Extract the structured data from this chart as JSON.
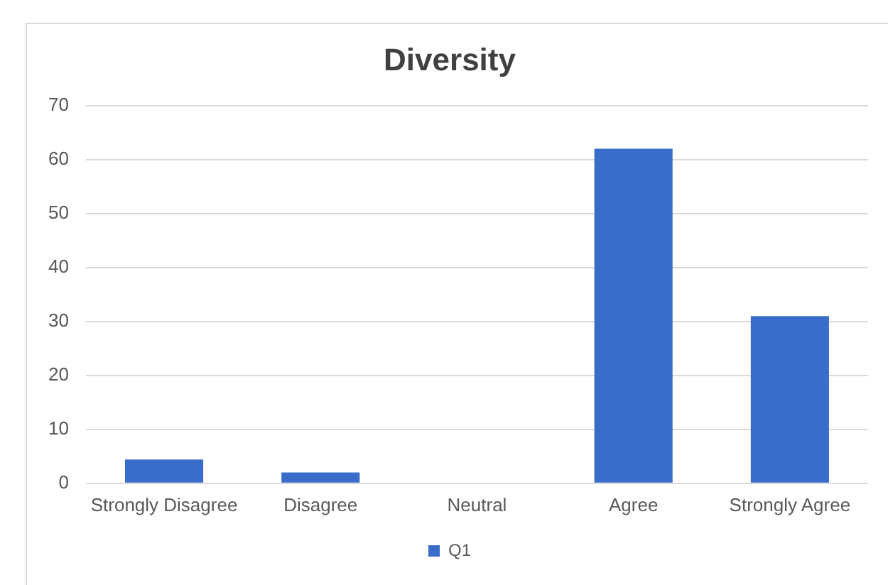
{
  "chart_data": {
    "type": "bar",
    "title": "Diversity",
    "categories": [
      "Strongly Disagree",
      "Disagree",
      "Neutral",
      "Agree",
      "Strongly Agree"
    ],
    "series": [
      {
        "name": "Q1",
        "color": "#3a6cc9",
        "values": [
          4.4,
          2,
          0,
          62,
          31
        ]
      }
    ],
    "ylim": [
      0,
      70
    ],
    "yticks": [
      0,
      10,
      20,
      30,
      40,
      50,
      60,
      70
    ],
    "grid": "y",
    "legend": "bottom"
  }
}
